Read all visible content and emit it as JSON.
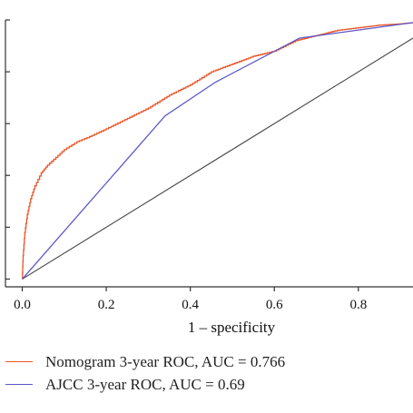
{
  "chart_data": {
    "type": "line",
    "xlabel": "1 – specificity",
    "ylabel": "",
    "xlim": [
      -0.04,
      0.93
    ],
    "ylim": [
      -0.03,
      1.0
    ],
    "x_ticks": [
      "0.0",
      "0.2",
      "0.4",
      "0.6",
      "0.8"
    ],
    "y_ticks": [
      0.0,
      0.2,
      0.4,
      0.6,
      0.8,
      1.0
    ],
    "grid": false,
    "legend_position": "bottom",
    "series": [
      {
        "name": "Nomogram 3-year ROC, AUC = 0.766",
        "color": "#e8562a",
        "style": "step",
        "x": [
          0.0,
          0.002,
          0.006,
          0.012,
          0.02,
          0.03,
          0.045,
          0.06,
          0.08,
          0.1,
          0.13,
          0.16,
          0.2,
          0.25,
          0.3,
          0.35,
          0.4,
          0.45,
          0.5,
          0.55,
          0.6,
          0.65,
          0.7,
          0.75,
          0.8,
          0.85,
          0.9,
          0.93
        ],
        "y": [
          0.0,
          0.09,
          0.18,
          0.25,
          0.31,
          0.36,
          0.41,
          0.44,
          0.47,
          0.5,
          0.53,
          0.55,
          0.58,
          0.62,
          0.66,
          0.71,
          0.75,
          0.8,
          0.83,
          0.86,
          0.88,
          0.92,
          0.94,
          0.96,
          0.97,
          0.98,
          0.985,
          0.99
        ]
      },
      {
        "name": "AJCC 3-year ROC, AUC = 0.69",
        "color": "#5b57c8",
        "style": "line",
        "x": [
          0.0,
          0.34,
          0.46,
          0.66,
          0.93
        ],
        "y": [
          0.0,
          0.63,
          0.76,
          0.93,
          0.99
        ]
      },
      {
        "name": "",
        "color": "#444444",
        "style": "line",
        "x": [
          0.0,
          0.93
        ],
        "y": [
          0.0,
          0.93
        ]
      }
    ]
  },
  "legend": {
    "items": [
      {
        "label": "Nomogram 3-year ROC, AUC = 0.766",
        "color": "#e8562a"
      },
      {
        "label": "AJCC 3-year ROC, AUC = 0.69",
        "color": "#5b57c8"
      }
    ]
  }
}
